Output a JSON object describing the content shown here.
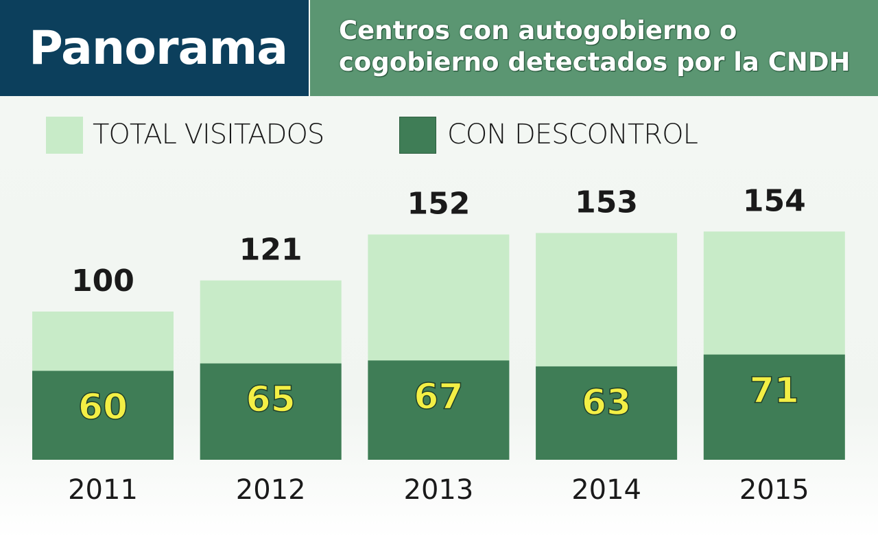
{
  "header": {
    "title": "Panorama",
    "subtitle_line1": "Centros con autogobierno o",
    "subtitle_line2": "cogobierno detectados por la CNDH"
  },
  "chart_data": {
    "type": "bar",
    "title": "Centros con autogobierno o cogobierno detectados por la CNDH",
    "categories": [
      "2011",
      "2012",
      "2013",
      "2014",
      "2015"
    ],
    "series": [
      {
        "name": "TOTAL VISITADOS",
        "values": [
          100,
          121,
          152,
          153,
          154
        ],
        "color": "#c8ebc8"
      },
      {
        "name": "CON DESCONTROL",
        "values": [
          60,
          65,
          67,
          63,
          71
        ],
        "color": "#3f7d56"
      }
    ],
    "legend_position": "top-left",
    "overlapping": true,
    "ylim": [
      0,
      160
    ],
    "grid": false
  },
  "colors": {
    "header_dark": "#0c3f5c",
    "header_green": "#5b9672",
    "inner_label": "#f3ef45"
  }
}
